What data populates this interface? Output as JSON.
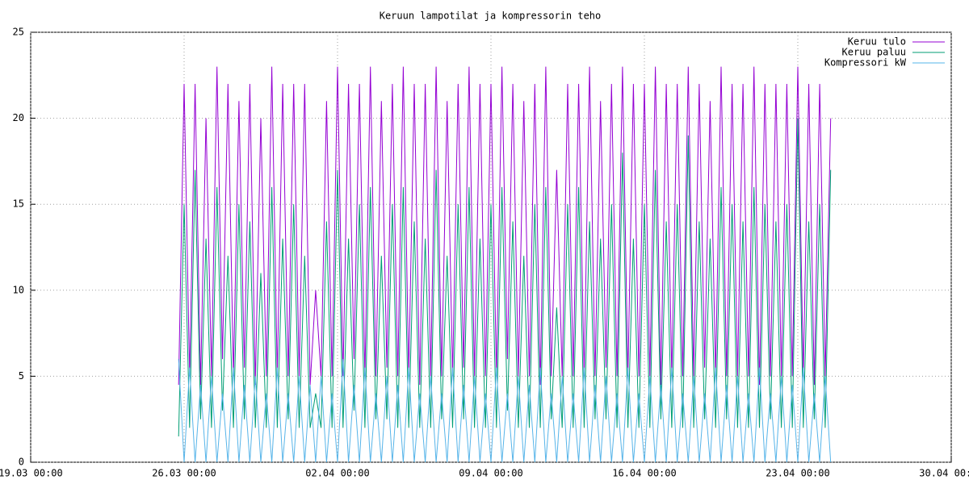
{
  "chart_data": {
    "type": "line",
    "title": "Keruun lampotilat ja kompressorin teho",
    "x": [
      "25.03 18:00",
      "26.03 00:00",
      "26.03 06:00",
      "26.03 12:00",
      "26.03 18:00",
      "27.03 00:00",
      "27.03 06:00",
      "27.03 12:00",
      "27.03 18:00",
      "28.03 00:00",
      "28.03 06:00",
      "28.03 12:00",
      "28.03 18:00",
      "29.03 00:00",
      "29.03 06:00",
      "29.03 12:00",
      "29.03 18:00",
      "30.03 00:00",
      "30.03 06:00",
      "30.03 12:00",
      "30.03 18:00",
      "31.03 00:00",
      "31.03 06:00",
      "31.03 12:00",
      "31.03 18:00",
      "01.04 00:00",
      "01.04 06:00",
      "01.04 12:00",
      "01.04 18:00",
      "02.04 00:00",
      "02.04 06:00",
      "02.04 12:00",
      "02.04 18:00",
      "03.04 00:00",
      "03.04 06:00",
      "03.04 12:00",
      "03.04 18:00",
      "04.04 00:00",
      "04.04 06:00",
      "04.04 12:00",
      "04.04 18:00",
      "05.04 00:00",
      "05.04 06:00",
      "05.04 12:00",
      "05.04 18:00",
      "06.04 00:00",
      "06.04 06:00",
      "06.04 12:00",
      "06.04 18:00",
      "07.04 00:00",
      "07.04 06:00",
      "07.04 12:00",
      "07.04 18:00",
      "08.04 00:00",
      "08.04 06:00",
      "08.04 12:00",
      "08.04 18:00",
      "09.04 00:00",
      "09.04 06:00",
      "09.04 12:00",
      "09.04 18:00",
      "10.04 00:00",
      "10.04 06:00",
      "10.04 12:00",
      "10.04 18:00",
      "11.04 00:00",
      "11.04 06:00",
      "11.04 12:00",
      "11.04 18:00",
      "12.04 00:00",
      "12.04 06:00",
      "12.04 12:00",
      "12.04 18:00",
      "13.04 00:00",
      "13.04 06:00",
      "13.04 12:00",
      "13.04 18:00",
      "14.04 00:00",
      "14.04 06:00",
      "14.04 12:00",
      "14.04 18:00",
      "15.04 00:00",
      "15.04 06:00",
      "15.04 12:00",
      "15.04 18:00",
      "16.04 00:00",
      "16.04 06:00",
      "16.04 12:00",
      "16.04 18:00",
      "17.04 00:00",
      "17.04 06:00",
      "17.04 12:00",
      "17.04 18:00",
      "18.04 00:00",
      "18.04 06:00",
      "18.04 12:00",
      "18.04 18:00",
      "19.04 00:00",
      "19.04 06:00",
      "19.04 12:00",
      "19.04 18:00",
      "20.04 00:00",
      "20.04 06:00",
      "20.04 12:00",
      "20.04 18:00",
      "21.04 00:00",
      "21.04 06:00",
      "21.04 12:00",
      "21.04 18:00",
      "22.04 00:00",
      "22.04 06:00",
      "22.04 12:00",
      "22.04 18:00",
      "23.04 00:00",
      "23.04 06:00",
      "23.04 12:00",
      "23.04 18:00",
      "24.04 00:00",
      "24.04 06:00",
      "24.04 12:00"
    ],
    "series": [
      {
        "name": "Keruu tulo",
        "color": "#9400d3",
        "values": [
          4.5,
          22,
          5,
          22,
          4.5,
          20,
          5,
          23,
          6,
          22,
          5,
          21,
          5.5,
          22,
          4.5,
          20,
          5,
          23,
          5,
          22,
          5,
          22,
          5,
          22,
          4.5,
          10,
          5,
          21,
          5,
          23,
          5,
          22,
          6,
          22,
          5,
          23,
          5,
          21,
          5.5,
          22,
          5,
          23,
          5,
          22,
          4.5,
          22,
          5,
          23,
          5,
          21,
          5,
          22,
          5.5,
          23,
          5,
          22,
          5,
          22,
          5,
          23,
          6,
          22,
          5,
          21,
          5,
          22,
          4.5,
          23,
          5,
          17,
          5,
          22,
          5,
          22,
          5,
          23,
          5,
          21,
          5.5,
          22,
          5,
          23,
          5,
          22,
          5,
          22,
          5,
          23,
          4.5,
          22,
          5,
          22,
          5,
          23,
          5,
          22,
          5.5,
          21,
          5,
          23,
          5,
          22,
          5,
          22,
          5,
          23,
          4.5,
          22,
          5,
          22,
          5,
          22,
          5,
          23,
          5,
          22,
          4.5,
          22,
          5,
          20
        ]
      },
      {
        "name": "Keruu paluu",
        "color": "#009e73",
        "values": [
          1.5,
          15,
          2,
          17,
          2.5,
          13,
          2,
          16,
          3,
          12,
          2,
          15,
          2.5,
          14,
          2,
          11,
          2,
          16,
          2,
          13,
          2.5,
          15,
          2,
          12,
          2,
          4,
          2,
          14,
          2,
          17,
          2,
          13,
          3,
          15,
          2,
          16,
          2.5,
          12,
          2.5,
          15,
          2,
          16,
          2,
          14,
          2,
          13,
          2,
          17,
          2.5,
          12,
          2,
          15,
          2.5,
          16,
          2,
          13,
          2,
          15,
          2,
          16,
          3,
          14,
          2,
          12,
          2,
          15,
          2,
          16,
          2.5,
          9,
          2,
          15,
          2,
          16,
          2,
          14,
          2.5,
          13,
          2.5,
          15,
          2,
          18,
          2,
          13,
          2,
          15,
          2,
          17,
          2.5,
          14,
          2,
          15,
          2,
          19,
          2,
          14,
          2.5,
          13,
          2,
          16,
          2.5,
          15,
          2,
          14,
          2,
          16,
          2,
          15,
          2.5,
          14,
          2,
          15,
          2,
          20,
          2,
          14,
          2.5,
          15,
          2,
          17
        ]
      },
      {
        "name": "Kompressori kW",
        "color": "#56b4e9",
        "values": [
          6,
          0,
          5.5,
          0,
          4.5,
          0,
          5,
          0,
          4,
          0,
          5.5,
          0,
          4.5,
          0,
          5,
          0,
          4,
          0,
          5.5,
          0,
          4,
          0,
          5,
          0,
          4.5,
          0,
          5,
          0,
          4,
          0,
          6,
          0,
          4.5,
          0,
          5.5,
          0,
          4,
          0,
          5,
          0,
          4.5,
          0,
          5.5,
          0,
          4,
          0,
          5,
          0,
          4,
          0,
          5.5,
          0,
          4.5,
          0,
          5,
          0,
          4,
          0,
          5.5,
          0,
          4,
          0,
          5,
          0,
          4.5,
          0,
          5.5,
          0,
          4,
          0,
          5,
          0,
          4,
          0,
          5.5,
          0,
          4.5,
          0,
          5,
          0,
          4,
          0,
          5.5,
          0,
          4,
          0,
          5,
          0,
          4.5,
          0,
          5.5,
          0,
          4,
          0,
          5,
          0,
          4,
          0,
          5.5,
          0,
          4.5,
          0,
          5,
          0,
          4,
          0,
          5.5,
          0,
          4,
          0,
          5,
          0,
          4.5,
          0,
          5.5,
          0,
          4,
          0,
          5,
          0
        ]
      }
    ],
    "xlim": [
      "19.03 00:00",
      "30.04 00:00"
    ],
    "xticks": [
      "19.03 00:00",
      "26.03 00:00",
      "02.04 00:00",
      "09.04 00:00",
      "16.04 00:00",
      "23.04 00:00",
      "30.04 00:00"
    ],
    "ylim": [
      0,
      25
    ],
    "yticks": [
      0,
      5,
      10,
      15,
      20,
      25
    ],
    "grid": true,
    "legend": "top-right"
  }
}
